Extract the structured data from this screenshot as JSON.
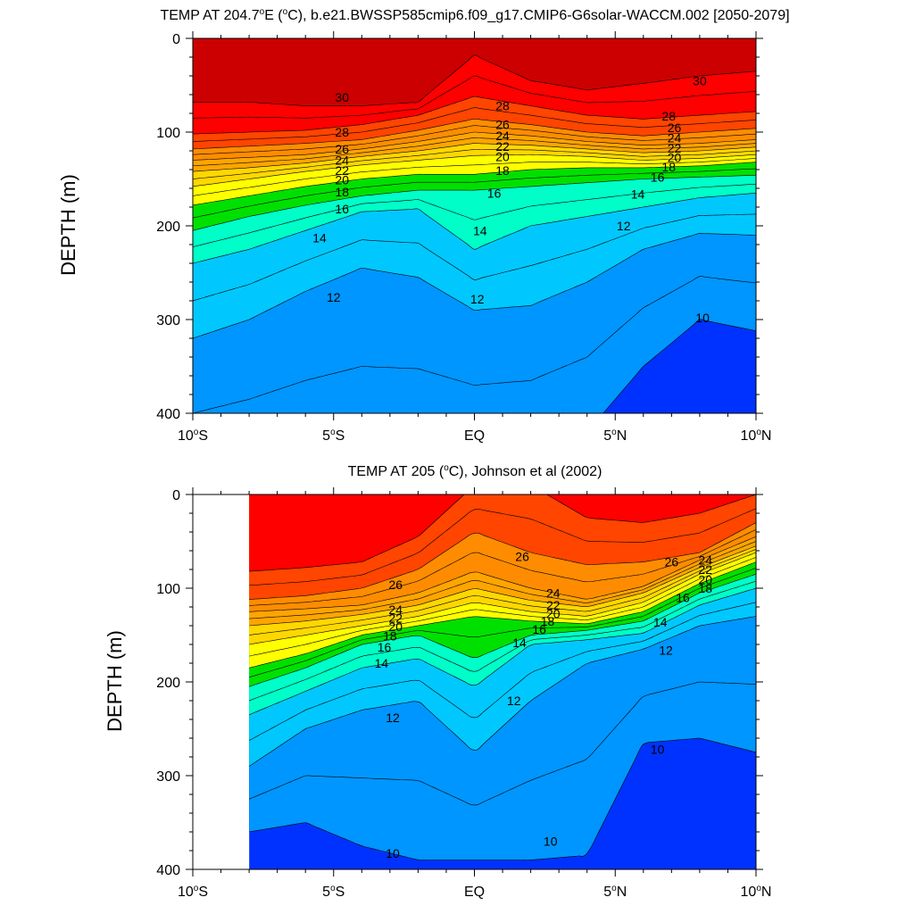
{
  "chart_data": [
    {
      "type": "contour",
      "title_main": "TEMP AT 204.7",
      "title_deg": "o",
      "title_rest": "E (",
      "title_deg2": "o",
      "title_tail": "C), b.e21.BWSSP585cmip6.f09_g17.CMIP6-G6solar-WACCM.002 [2050-2079]",
      "ylabel": "DEPTH (m)",
      "xlim": [
        -10,
        10
      ],
      "ylim": [
        0,
        400
      ],
      "data_start_lat": -10,
      "yticks": [
        0,
        100,
        200,
        300,
        400
      ],
      "xticks": [
        {
          "v": -10,
          "num": "10",
          "hemi": "S"
        },
        {
          "v": -5,
          "num": "5",
          "hemi": "S"
        },
        {
          "v": 0,
          "num": "EQ",
          "hemi": ""
        },
        {
          "v": 5,
          "num": "5",
          "hemi": "N"
        },
        {
          "v": 10,
          "num": "10",
          "hemi": "N"
        }
      ],
      "isotherm_lats": [
        -10,
        -8,
        -6,
        -4,
        -2,
        0,
        2,
        4,
        6,
        8,
        10
      ],
      "isotherms": [
        {
          "t": 30,
          "d": [
            68,
            68,
            72,
            72,
            68,
            18,
            45,
            55,
            48,
            40,
            35
          ]
        },
        {
          "t": 28,
          "d": [
            102,
            100,
            98,
            92,
            82,
            62,
            72,
            82,
            86,
            82,
            78
          ]
        },
        {
          "t": 26,
          "d": [
            118,
            115,
            112,
            108,
            98,
            86,
            92,
            100,
            104,
            100,
            96
          ]
        },
        {
          "t": 24,
          "d": [
            130,
            127,
            124,
            118,
            110,
            100,
            104,
            110,
            114,
            112,
            108
          ]
        },
        {
          "t": 22,
          "d": [
            142,
            138,
            133,
            126,
            120,
            112,
            114,
            118,
            122,
            120,
            116
          ]
        },
        {
          "t": 20,
          "d": [
            158,
            150,
            142,
            135,
            130,
            125,
            124,
            126,
            130,
            128,
            124
          ]
        },
        {
          "t": 18,
          "d": [
            178,
            168,
            158,
            150,
            145,
            145,
            140,
            138,
            138,
            136,
            132
          ]
        },
        {
          "t": 16,
          "d": [
            205,
            190,
            178,
            168,
            162,
            162,
            158,
            154,
            150,
            148,
            146
          ]
        },
        {
          "t": 14,
          "d": [
            240,
            225,
            205,
            185,
            182,
            225,
            200,
            190,
            180,
            170,
            165
          ]
        },
        {
          "t": 12,
          "d": [
            320,
            300,
            270,
            245,
            255,
            290,
            285,
            260,
            225,
            208,
            210
          ]
        },
        {
          "t": 10,
          "d": [
            480,
            470,
            460,
            455,
            450,
            450,
            445,
            420,
            350,
            300,
            312
          ]
        }
      ],
      "isotherm_labels": [
        {
          "t": 30,
          "lat": -4.7,
          "depth": 63
        },
        {
          "t": 28,
          "lat": -4.7,
          "depth": 100
        },
        {
          "t": 26,
          "lat": -4.7,
          "depth": 118
        },
        {
          "t": 24,
          "lat": -4.7,
          "depth": 130
        },
        {
          "t": 22,
          "lat": -4.7,
          "depth": 141
        },
        {
          "t": 20,
          "lat": -4.7,
          "depth": 151
        },
        {
          "t": 18,
          "lat": -4.7,
          "depth": 164
        },
        {
          "t": 16,
          "lat": -4.7,
          "depth": 182
        },
        {
          "t": 14,
          "lat": -5.5,
          "depth": 213
        },
        {
          "t": 12,
          "lat": -5.0,
          "depth": 276
        },
        {
          "t": 28,
          "lat": 1.0,
          "depth": 72
        },
        {
          "t": 26,
          "lat": 1.0,
          "depth": 92
        },
        {
          "t": 24,
          "lat": 1.0,
          "depth": 104
        },
        {
          "t": 22,
          "lat": 1.0,
          "depth": 115
        },
        {
          "t": 20,
          "lat": 1.0,
          "depth": 126
        },
        {
          "t": 18,
          "lat": 1.0,
          "depth": 141
        },
        {
          "t": 16,
          "lat": 0.7,
          "depth": 165
        },
        {
          "t": 14,
          "lat": 0.2,
          "depth": 205
        },
        {
          "t": 12,
          "lat": 0.1,
          "depth": 278
        },
        {
          "t": 12,
          "lat": 5.3,
          "depth": 200
        },
        {
          "t": 30,
          "lat": 8.0,
          "depth": 45
        },
        {
          "t": 28,
          "lat": 6.9,
          "depth": 83
        },
        {
          "t": 26,
          "lat": 7.1,
          "depth": 95
        },
        {
          "t": 24,
          "lat": 7.1,
          "depth": 106
        },
        {
          "t": 22,
          "lat": 7.1,
          "depth": 117
        },
        {
          "t": 20,
          "lat": 7.1,
          "depth": 127
        },
        {
          "t": 18,
          "lat": 6.9,
          "depth": 137
        },
        {
          "t": 16,
          "lat": 6.5,
          "depth": 148
        },
        {
          "t": 14,
          "lat": 5.8,
          "depth": 166
        },
        {
          "t": 10,
          "lat": 8.1,
          "depth": 298
        }
      ]
    },
    {
      "type": "contour",
      "title_main": "TEMP AT 205 (",
      "title_deg": "o",
      "title_tail": "C), Johnson et al (2002)",
      "ylabel": "DEPTH (m)",
      "xlim": [
        -10,
        10
      ],
      "ylim": [
        0,
        400
      ],
      "data_start_lat": -8,
      "yticks": [
        0,
        100,
        200,
        300,
        400
      ],
      "xticks": [
        {
          "v": -10,
          "num": "10",
          "hemi": "S"
        },
        {
          "v": -5,
          "num": "5",
          "hemi": "S"
        },
        {
          "v": 0,
          "num": "EQ",
          "hemi": ""
        },
        {
          "v": 5,
          "num": "5",
          "hemi": "N"
        },
        {
          "v": 10,
          "num": "10",
          "hemi": "N"
        }
      ],
      "isotherm_lats": [
        -8,
        -6,
        -4,
        -2,
        0,
        2,
        4,
        6,
        8,
        10
      ],
      "isotherms": [
        {
          "t": 28,
          "d": [
            82,
            78,
            72,
            45,
            -10,
            -10,
            25,
            30,
            20,
            0
          ]
        },
        {
          "t": 26,
          "d": [
            112,
            108,
            100,
            80,
            40,
            62,
            75,
            72,
            62,
            30
          ]
        },
        {
          "t": 24,
          "d": [
            125,
            122,
            118,
            105,
            82,
            100,
            112,
            98,
            70,
            45
          ]
        },
        {
          "t": 22,
          "d": [
            140,
            135,
            128,
            118,
            100,
            113,
            120,
            105,
            78,
            55
          ]
        },
        {
          "t": 20,
          "d": [
            160,
            150,
            140,
            130,
            115,
            125,
            130,
            115,
            85,
            62
          ]
        },
        {
          "t": 18,
          "d": [
            185,
            170,
            150,
            140,
            130,
            135,
            138,
            125,
            95,
            72
          ]
        },
        {
          "t": 16,
          "d": [
            205,
            185,
            160,
            150,
            175,
            150,
            145,
            135,
            105,
            85
          ]
        },
        {
          "t": 14,
          "d": [
            235,
            210,
            185,
            175,
            205,
            160,
            155,
            148,
            118,
            100
          ]
        },
        {
          "t": 12,
          "d": [
            290,
            250,
            230,
            220,
            275,
            220,
            180,
            165,
            140,
            130
          ]
        },
        {
          "t": 10,
          "d": [
            360,
            350,
            375,
            390,
            390,
            390,
            385,
            265,
            260,
            275
          ]
        }
      ],
      "isotherm_labels": [
        {
          "t": 26,
          "lat": -2.8,
          "depth": 96
        },
        {
          "t": 24,
          "lat": -2.8,
          "depth": 123
        },
        {
          "t": 22,
          "lat": -2.8,
          "depth": 132
        },
        {
          "t": 20,
          "lat": -2.8,
          "depth": 141
        },
        {
          "t": 18,
          "lat": -3.0,
          "depth": 151
        },
        {
          "t": 16,
          "lat": -3.2,
          "depth": 163
        },
        {
          "t": 14,
          "lat": -3.3,
          "depth": 180
        },
        {
          "t": 12,
          "lat": -2.9,
          "depth": 238
        },
        {
          "t": 10,
          "lat": -2.9,
          "depth": 383
        },
        {
          "t": 26,
          "lat": 1.7,
          "depth": 66
        },
        {
          "t": 24,
          "lat": 2.8,
          "depth": 105
        },
        {
          "t": 22,
          "lat": 2.8,
          "depth": 118
        },
        {
          "t": 20,
          "lat": 2.8,
          "depth": 127
        },
        {
          "t": 18,
          "lat": 2.6,
          "depth": 135
        },
        {
          "t": 16,
          "lat": 2.3,
          "depth": 144
        },
        {
          "t": 14,
          "lat": 1.6,
          "depth": 158
        },
        {
          "t": 12,
          "lat": 1.4,
          "depth": 220
        },
        {
          "t": 10,
          "lat": 2.7,
          "depth": 370
        },
        {
          "t": 26,
          "lat": 7.0,
          "depth": 72
        },
        {
          "t": 24,
          "lat": 8.2,
          "depth": 70
        },
        {
          "t": 22,
          "lat": 8.2,
          "depth": 80
        },
        {
          "t": 20,
          "lat": 8.2,
          "depth": 91
        },
        {
          "t": 18,
          "lat": 8.2,
          "depth": 100
        },
        {
          "t": 16,
          "lat": 7.4,
          "depth": 110
        },
        {
          "t": 14,
          "lat": 6.6,
          "depth": 136
        },
        {
          "t": 12,
          "lat": 6.8,
          "depth": 166
        },
        {
          "t": 10,
          "lat": 6.5,
          "depth": 272
        }
      ]
    }
  ],
  "colormap": {
    "t30": "#cc0000",
    "t28": "#ff0000",
    "t26": "#ff4500",
    "t24": "#ff8c00",
    "t22": "#ffa500",
    "t20": "#ffd700",
    "t18": "#ffff00",
    "t16": "#00e000",
    "t14": "#00ffc8",
    "t12": "#00c8ff",
    "t10": "#0096ff",
    "cold": "#0032ff"
  }
}
